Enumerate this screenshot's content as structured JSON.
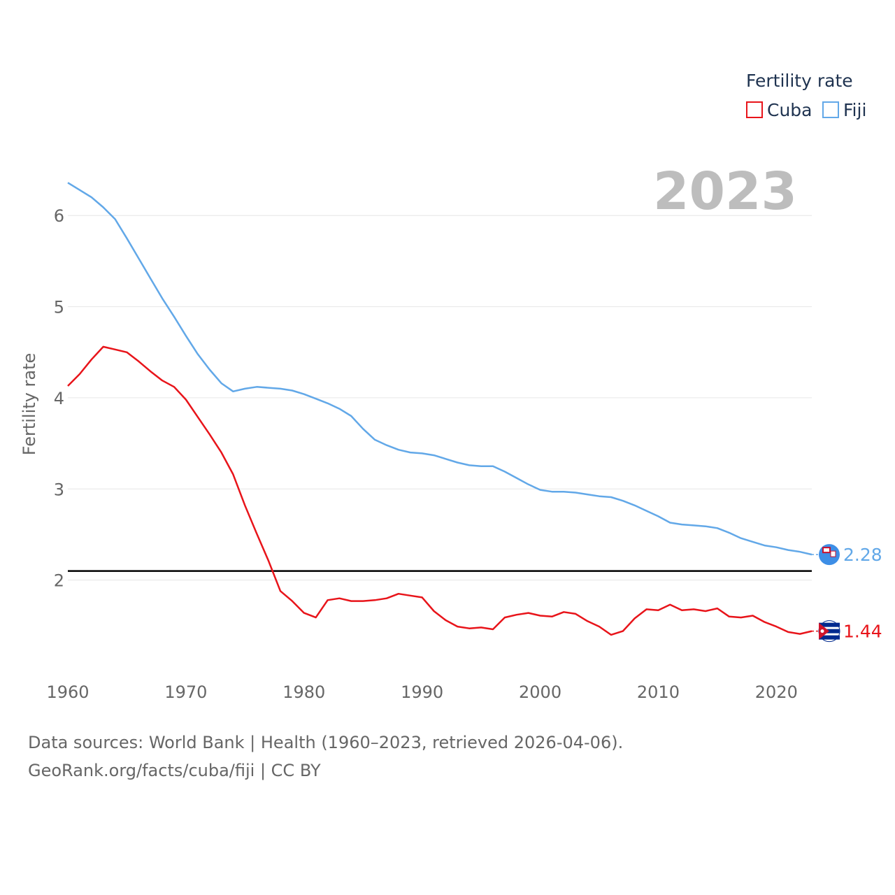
{
  "chart_data": {
    "type": "line",
    "ylabel": "Fertility rate",
    "xlabel": "",
    "year_label": "2023",
    "x_range": [
      1960,
      2023
    ],
    "ylim": [
      1.0,
      6.6
    ],
    "x_ticks": [
      1960,
      1970,
      1980,
      1990,
      2000,
      2010,
      2020
    ],
    "y_ticks": [
      2,
      3,
      4,
      5,
      6
    ],
    "grid": true,
    "legend": {
      "title": "Fertility rate",
      "placement": "top-right"
    },
    "reference_line": 2.1,
    "series": [
      {
        "name": "Cuba",
        "color": "#e8141a",
        "end_label": "1.44",
        "x": [
          1960,
          1961,
          1962,
          1963,
          1964,
          1965,
          1966,
          1967,
          1968,
          1969,
          1970,
          1971,
          1972,
          1973,
          1974,
          1975,
          1976,
          1977,
          1978,
          1979,
          1980,
          1981,
          1982,
          1983,
          1984,
          1985,
          1986,
          1987,
          1988,
          1989,
          1990,
          1991,
          1992,
          1993,
          1994,
          1995,
          1996,
          1997,
          1998,
          1999,
          2000,
          2001,
          2002,
          2003,
          2004,
          2005,
          2006,
          2007,
          2008,
          2009,
          2010,
          2011,
          2012,
          2013,
          2014,
          2015,
          2016,
          2017,
          2018,
          2019,
          2020,
          2021,
          2022,
          2023
        ],
        "values": [
          4.13,
          4.26,
          4.42,
          4.56,
          4.53,
          4.5,
          4.4,
          4.29,
          4.19,
          4.12,
          3.98,
          3.79,
          3.6,
          3.4,
          3.16,
          2.82,
          2.51,
          2.21,
          1.88,
          1.77,
          1.64,
          1.59,
          1.78,
          1.8,
          1.77,
          1.77,
          1.78,
          1.8,
          1.85,
          1.83,
          1.81,
          1.66,
          1.56,
          1.49,
          1.47,
          1.48,
          1.46,
          1.59,
          1.62,
          1.64,
          1.61,
          1.6,
          1.65,
          1.63,
          1.55,
          1.49,
          1.4,
          1.44,
          1.58,
          1.68,
          1.67,
          1.73,
          1.67,
          1.68,
          1.66,
          1.69,
          1.6,
          1.59,
          1.61,
          1.54,
          1.49,
          1.43,
          1.41,
          1.44
        ]
      },
      {
        "name": "Fiji",
        "color": "#62a8e8",
        "end_label": "2.28",
        "x": [
          1960,
          1961,
          1962,
          1963,
          1964,
          1965,
          1966,
          1967,
          1968,
          1969,
          1970,
          1971,
          1972,
          1973,
          1974,
          1975,
          1976,
          1977,
          1978,
          1979,
          1980,
          1981,
          1982,
          1983,
          1984,
          1985,
          1986,
          1987,
          1988,
          1989,
          1990,
          1991,
          1992,
          1993,
          1994,
          1995,
          1996,
          1997,
          1998,
          1999,
          2000,
          2001,
          2002,
          2003,
          2004,
          2005,
          2006,
          2007,
          2008,
          2009,
          2010,
          2011,
          2012,
          2013,
          2014,
          2015,
          2016,
          2017,
          2018,
          2019,
          2020,
          2021,
          2022,
          2023
        ],
        "values": [
          6.36,
          6.28,
          6.2,
          6.09,
          5.96,
          5.75,
          5.53,
          5.31,
          5.09,
          4.89,
          4.68,
          4.48,
          4.31,
          4.16,
          4.07,
          4.1,
          4.12,
          4.11,
          4.1,
          4.08,
          4.04,
          3.99,
          3.94,
          3.88,
          3.8,
          3.66,
          3.54,
          3.48,
          3.43,
          3.4,
          3.39,
          3.37,
          3.33,
          3.29,
          3.26,
          3.25,
          3.25,
          3.19,
          3.12,
          3.05,
          2.99,
          2.97,
          2.97,
          2.96,
          2.94,
          2.92,
          2.91,
          2.87,
          2.82,
          2.76,
          2.7,
          2.63,
          2.61,
          2.6,
          2.59,
          2.57,
          2.52,
          2.46,
          2.42,
          2.38,
          2.36,
          2.33,
          2.31,
          2.28
        ]
      }
    ]
  },
  "source": {
    "line1": "Data sources: World Bank | Health (1960–2023, retrieved 2026-04-06).",
    "line2": "GeoRank.org/facts/cuba/fiji | CC BY"
  }
}
